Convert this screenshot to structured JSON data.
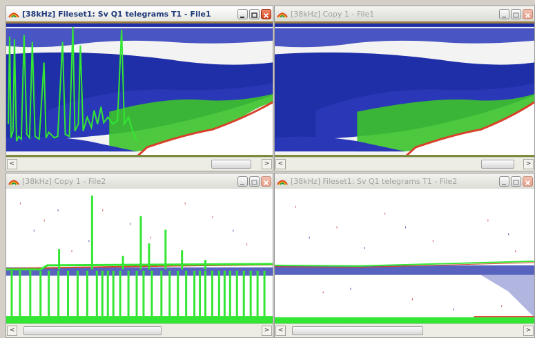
{
  "windows": [
    {
      "id": "w1",
      "title": "[38kHz] Fileset1: Sv Q1 telegrams T1 - File1",
      "active": true,
      "icon": "echogram-app-icon",
      "scroll": {
        "left": "scroll-left-arrow",
        "right": "scroll-right-arrow"
      }
    },
    {
      "id": "w2",
      "title": "[38kHz] Copy 1 - File1",
      "active": false,
      "icon": "echogram-app-icon",
      "scroll": {
        "left": "scroll-left-arrow",
        "right": "scroll-right-arrow"
      }
    },
    {
      "id": "w3",
      "title": "[38kHz] Copy 1 - File2",
      "active": false,
      "icon": "echogram-app-icon",
      "scroll": {
        "left": "scroll-left-arrow",
        "right": "scroll-right-arrow"
      }
    },
    {
      "id": "w4",
      "title": "[38kHz] Fileset1: Sv Q1 telegrams T1 - File2",
      "active": false,
      "icon": "echogram-app-icon",
      "scroll": {
        "left": "scroll-left-arrow",
        "right": "scroll-right-arrow"
      }
    }
  ],
  "colors": {
    "school_blue": "#1f2fa8",
    "plankton_green": "#3cc32a",
    "seabed_red": "#d8402a",
    "noise_green": "#33e633"
  },
  "glyphs": {
    "left_arrow": "<",
    "right_arrow": ">",
    "thumb_grip": "|||"
  }
}
